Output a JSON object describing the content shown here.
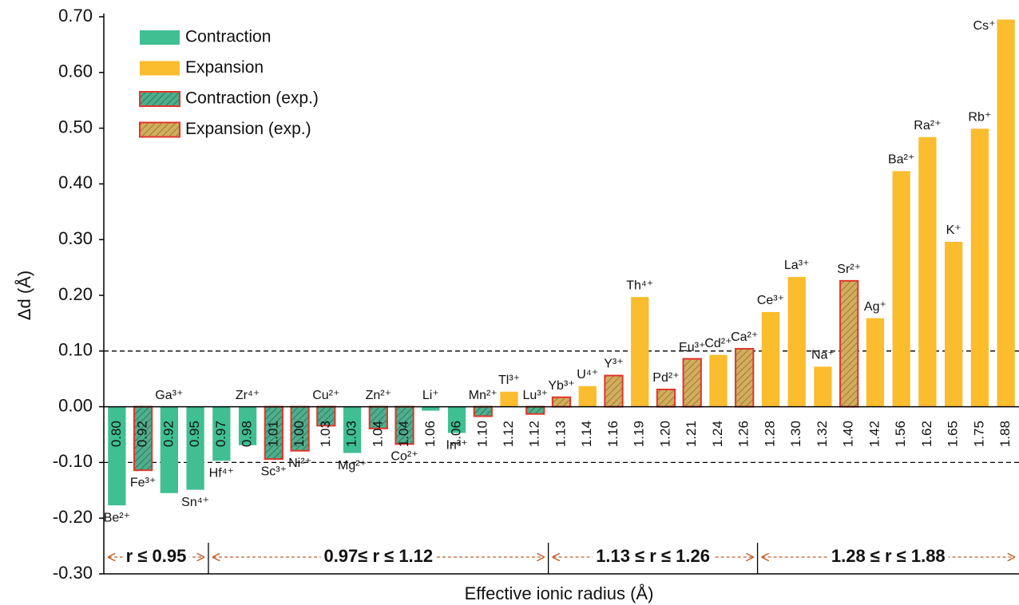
{
  "chart_data": {
    "type": "bar",
    "xlabel": "Effective ionic radius (Å)",
    "ylabel": "Δd (Å)",
    "categories": [
      "0.80",
      "0.92",
      "0.92",
      "0.95",
      "0.97",
      "0.98",
      "1.01",
      "1.00",
      "1.03",
      "1.03",
      "1.04",
      "1.04",
      "1.06",
      "1.06",
      "1.10",
      "1.12",
      "1.12",
      "1.13",
      "1.14",
      "1.16",
      "1.19",
      "1.20",
      "1.21",
      "1.24",
      "1.26",
      "1.28",
      "1.30",
      "1.32",
      "1.40",
      "1.42",
      "1.56",
      "1.62",
      "1.65",
      "1.75",
      "1.88"
    ],
    "point_labels": [
      "Be²⁺",
      "Fe³⁺",
      "Ga³⁺",
      "Sn⁴⁺",
      "Hf⁴⁺",
      "Zr⁴⁺",
      "Sc³⁺",
      "Ni²⁺",
      "Cu²⁺",
      "Mg²⁺",
      "Zn²⁺",
      "Co²⁺",
      "Li⁺",
      "In³⁺",
      "Mn²⁺",
      "Tl³⁺",
      "Lu³⁺",
      "Yb³⁺",
      "U⁴⁺",
      "Y³⁺",
      "Th⁴⁺",
      "Pd²⁺",
      "Eu³⁺",
      "Cd²⁺",
      "Ca²⁺",
      "Ce³⁺",
      "La³⁺",
      "Na⁺",
      "Sr²⁺",
      "Ag⁺",
      "Ba²⁺",
      "Ra²⁺",
      "K⁺",
      "Rb⁺",
      "Cs⁺"
    ],
    "series": [
      {
        "name": "Contraction",
        "color": "#3fbf92",
        "values": [
          -0.177,
          null,
          -0.155,
          -0.149,
          -0.097,
          -0.069,
          null,
          null,
          null,
          -0.083,
          null,
          null,
          -0.007,
          -0.047,
          null,
          null,
          null,
          null,
          null,
          null,
          null,
          null,
          null,
          null,
          null,
          null,
          null,
          null,
          null,
          null,
          null,
          null,
          null,
          null,
          null
        ]
      },
      {
        "name": "Expansion",
        "color": "#fbbc2d",
        "values": [
          null,
          null,
          null,
          null,
          null,
          null,
          null,
          null,
          null,
          null,
          null,
          null,
          null,
          null,
          null,
          0.027,
          null,
          null,
          0.037,
          null,
          0.197,
          null,
          null,
          0.093,
          null,
          0.17,
          0.233,
          0.072,
          null,
          0.159,
          0.423,
          0.484,
          0.296,
          0.499,
          0.695
        ]
      },
      {
        "name": "Contraction (exp.)",
        "color": "#4fae8c",
        "hatch": true,
        "edgecolor": "#e0362c",
        "values": [
          null,
          -0.114,
          null,
          null,
          null,
          null,
          -0.094,
          -0.079,
          -0.034,
          null,
          -0.039,
          -0.067,
          null,
          null,
          -0.017,
          null,
          -0.013,
          null,
          null,
          null,
          null,
          null,
          null,
          null,
          null,
          null,
          null,
          null,
          null,
          null,
          null,
          null,
          null,
          null,
          null
        ]
      },
      {
        "name": "Expansion (exp.)",
        "color": "#d2ae5c",
        "hatch": true,
        "edgecolor": "#e0362c",
        "values": [
          null,
          null,
          null,
          null,
          null,
          null,
          null,
          null,
          null,
          null,
          null,
          null,
          null,
          null,
          null,
          null,
          null,
          0.017,
          null,
          0.056,
          null,
          0.031,
          0.086,
          null,
          0.104,
          null,
          null,
          null,
          0.226,
          null,
          null,
          null,
          null,
          null,
          null
        ]
      }
    ],
    "ylim": [
      -0.3,
      0.7
    ],
    "yticks": [
      {
        "value": 0.7,
        "label": "0.70"
      },
      {
        "value": 0.6,
        "label": "0.60"
      },
      {
        "value": 0.5,
        "label": "0.50"
      },
      {
        "value": 0.4,
        "label": "0.40"
      },
      {
        "value": 0.3,
        "label": "0.30"
      },
      {
        "value": 0.2,
        "label": "0.20"
      },
      {
        "value": 0.1,
        "label": "0.10"
      },
      {
        "value": 0,
        "label": "0.00"
      },
      {
        "value": -0.1,
        "label": "-0.10"
      },
      {
        "value": -0.2,
        "label": "-0.20"
      },
      {
        "value": -0.3,
        "label": "-0.30"
      }
    ],
    "hlines": [
      0.1,
      -0.1
    ],
    "region_labels": [
      "r ≤ 0.95",
      "0.97≤ r ≤ 1.12",
      "1.13 ≤ r ≤ 1.26",
      "1.28 ≤ r ≤ 1.88"
    ],
    "legend": "upper left"
  }
}
